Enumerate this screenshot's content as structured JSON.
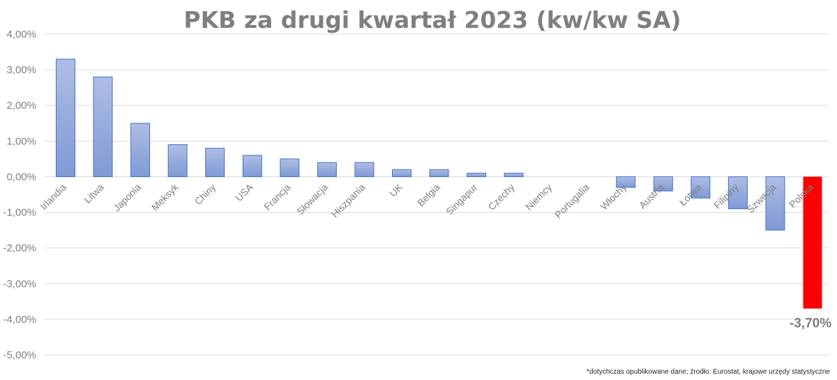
{
  "chart_data": {
    "type": "bar",
    "title": "PKB za drugi kwartał 2023 (kw/kw SA)",
    "categories": [
      "Irlandia",
      "Litwa",
      "Japonia",
      "Meksyk",
      "Chiny",
      "USA",
      "Francja",
      "Słowacja",
      "Hiszpania",
      "UK",
      "Belgia",
      "Singapur",
      "Czechy",
      "Niemcy",
      "Portugalia",
      "Włochy",
      "Austria",
      "Łotwa",
      "Filipiny",
      "Szwecja",
      "Polska"
    ],
    "values": [
      3.3,
      2.8,
      1.5,
      0.9,
      0.8,
      0.6,
      0.5,
      0.4,
      0.4,
      0.2,
      0.2,
      0.1,
      0.1,
      0.0,
      0.0,
      -0.3,
      -0.4,
      -0.6,
      -0.9,
      -1.5,
      -3.7
    ],
    "ylim": [
      -5,
      4
    ],
    "yticks": [
      4,
      3,
      2,
      1,
      0,
      -1,
      -2,
      -3,
      -4,
      -5
    ],
    "ytick_labels": [
      "4,00%",
      "3,00%",
      "2,00%",
      "1,00%",
      "0,00%",
      "-1,00%",
      "-2,00%",
      "-3,00%",
      "-4,00%",
      "-5,00%"
    ],
    "grid": true,
    "highlight": {
      "category": "Polska",
      "color": "#ff0000",
      "label": "-3,70%"
    },
    "bar_color": "#8faadc",
    "bar_edge_color": "#4472c4",
    "footnote": "*dotychczas opublikowane dane; źrodło: Eurostat, krajowe urzędy statystyczne"
  }
}
